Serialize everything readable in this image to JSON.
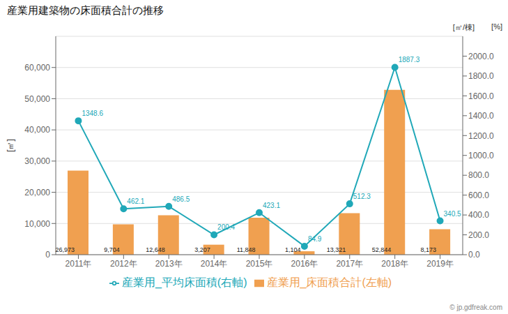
{
  "chart_data": {
    "type": "bar",
    "title": "産業用建築物の床面積合計の推移",
    "categories": [
      "2011年",
      "2012年",
      "2013年",
      "2014年",
      "2015年",
      "2016年",
      "2017年",
      "2018年",
      "2019年"
    ],
    "series": [
      {
        "name": "産業用_床面積合計(左軸)",
        "type": "bar",
        "color": "#f0a050",
        "values": [
          26973,
          9704,
          12648,
          3207,
          11848,
          1104,
          13321,
          52844,
          8173
        ],
        "value_labels": [
          "26,973",
          "9,704",
          "12,648",
          "3,207",
          "11,848",
          "1,104",
          "13,321",
          "52,844",
          "8,173"
        ]
      },
      {
        "name": "産業用_平均床面積(右軸)",
        "type": "line",
        "color": "#20a8b8",
        "axis": "y2",
        "marker": "circle",
        "values": [
          1348.6,
          462.1,
          486.5,
          200.4,
          423.1,
          84.9,
          512.3,
          1887.3,
          340.5
        ]
      }
    ],
    "ylabel": "[㎡]",
    "y2label": "[㎡/棟]",
    "annotations": [
      "[%]",
      "© jp.gdfreak.com"
    ],
    "ylim": [
      0,
      70000
    ],
    "yticks": [
      0,
      {
        "value": 10000,
        "label": "10,000"
      },
      {
        "value": 20000,
        "label": "20,000"
      },
      {
        "value": 30000,
        "label": "30,000"
      },
      {
        "value": 40000,
        "label": "40,000"
      },
      {
        "value": 50000,
        "label": "50,000"
      },
      {
        "value": 60000,
        "label": "60,000"
      }
    ],
    "y2lim": [
      0,
      2200
    ],
    "y2ticks": [
      {
        "value": 0,
        "label": "0.0"
      },
      {
        "value": 200,
        "label": "200.0"
      },
      {
        "value": 400,
        "label": "400.0"
      },
      {
        "value": 600,
        "label": "600.0"
      },
      {
        "value": 800,
        "label": "800.0"
      },
      {
        "value": 1000,
        "label": "1000.0"
      },
      {
        "value": 1200,
        "label": "1200.0"
      },
      {
        "value": 1400,
        "label": "1400.0"
      },
      {
        "value": 1600,
        "label": "1600.0"
      },
      {
        "value": 1800,
        "label": "1800.0"
      },
      {
        "value": 2000,
        "label": "2000.0"
      }
    ],
    "grid": true,
    "legend": "bottom",
    "data_labels": true
  }
}
